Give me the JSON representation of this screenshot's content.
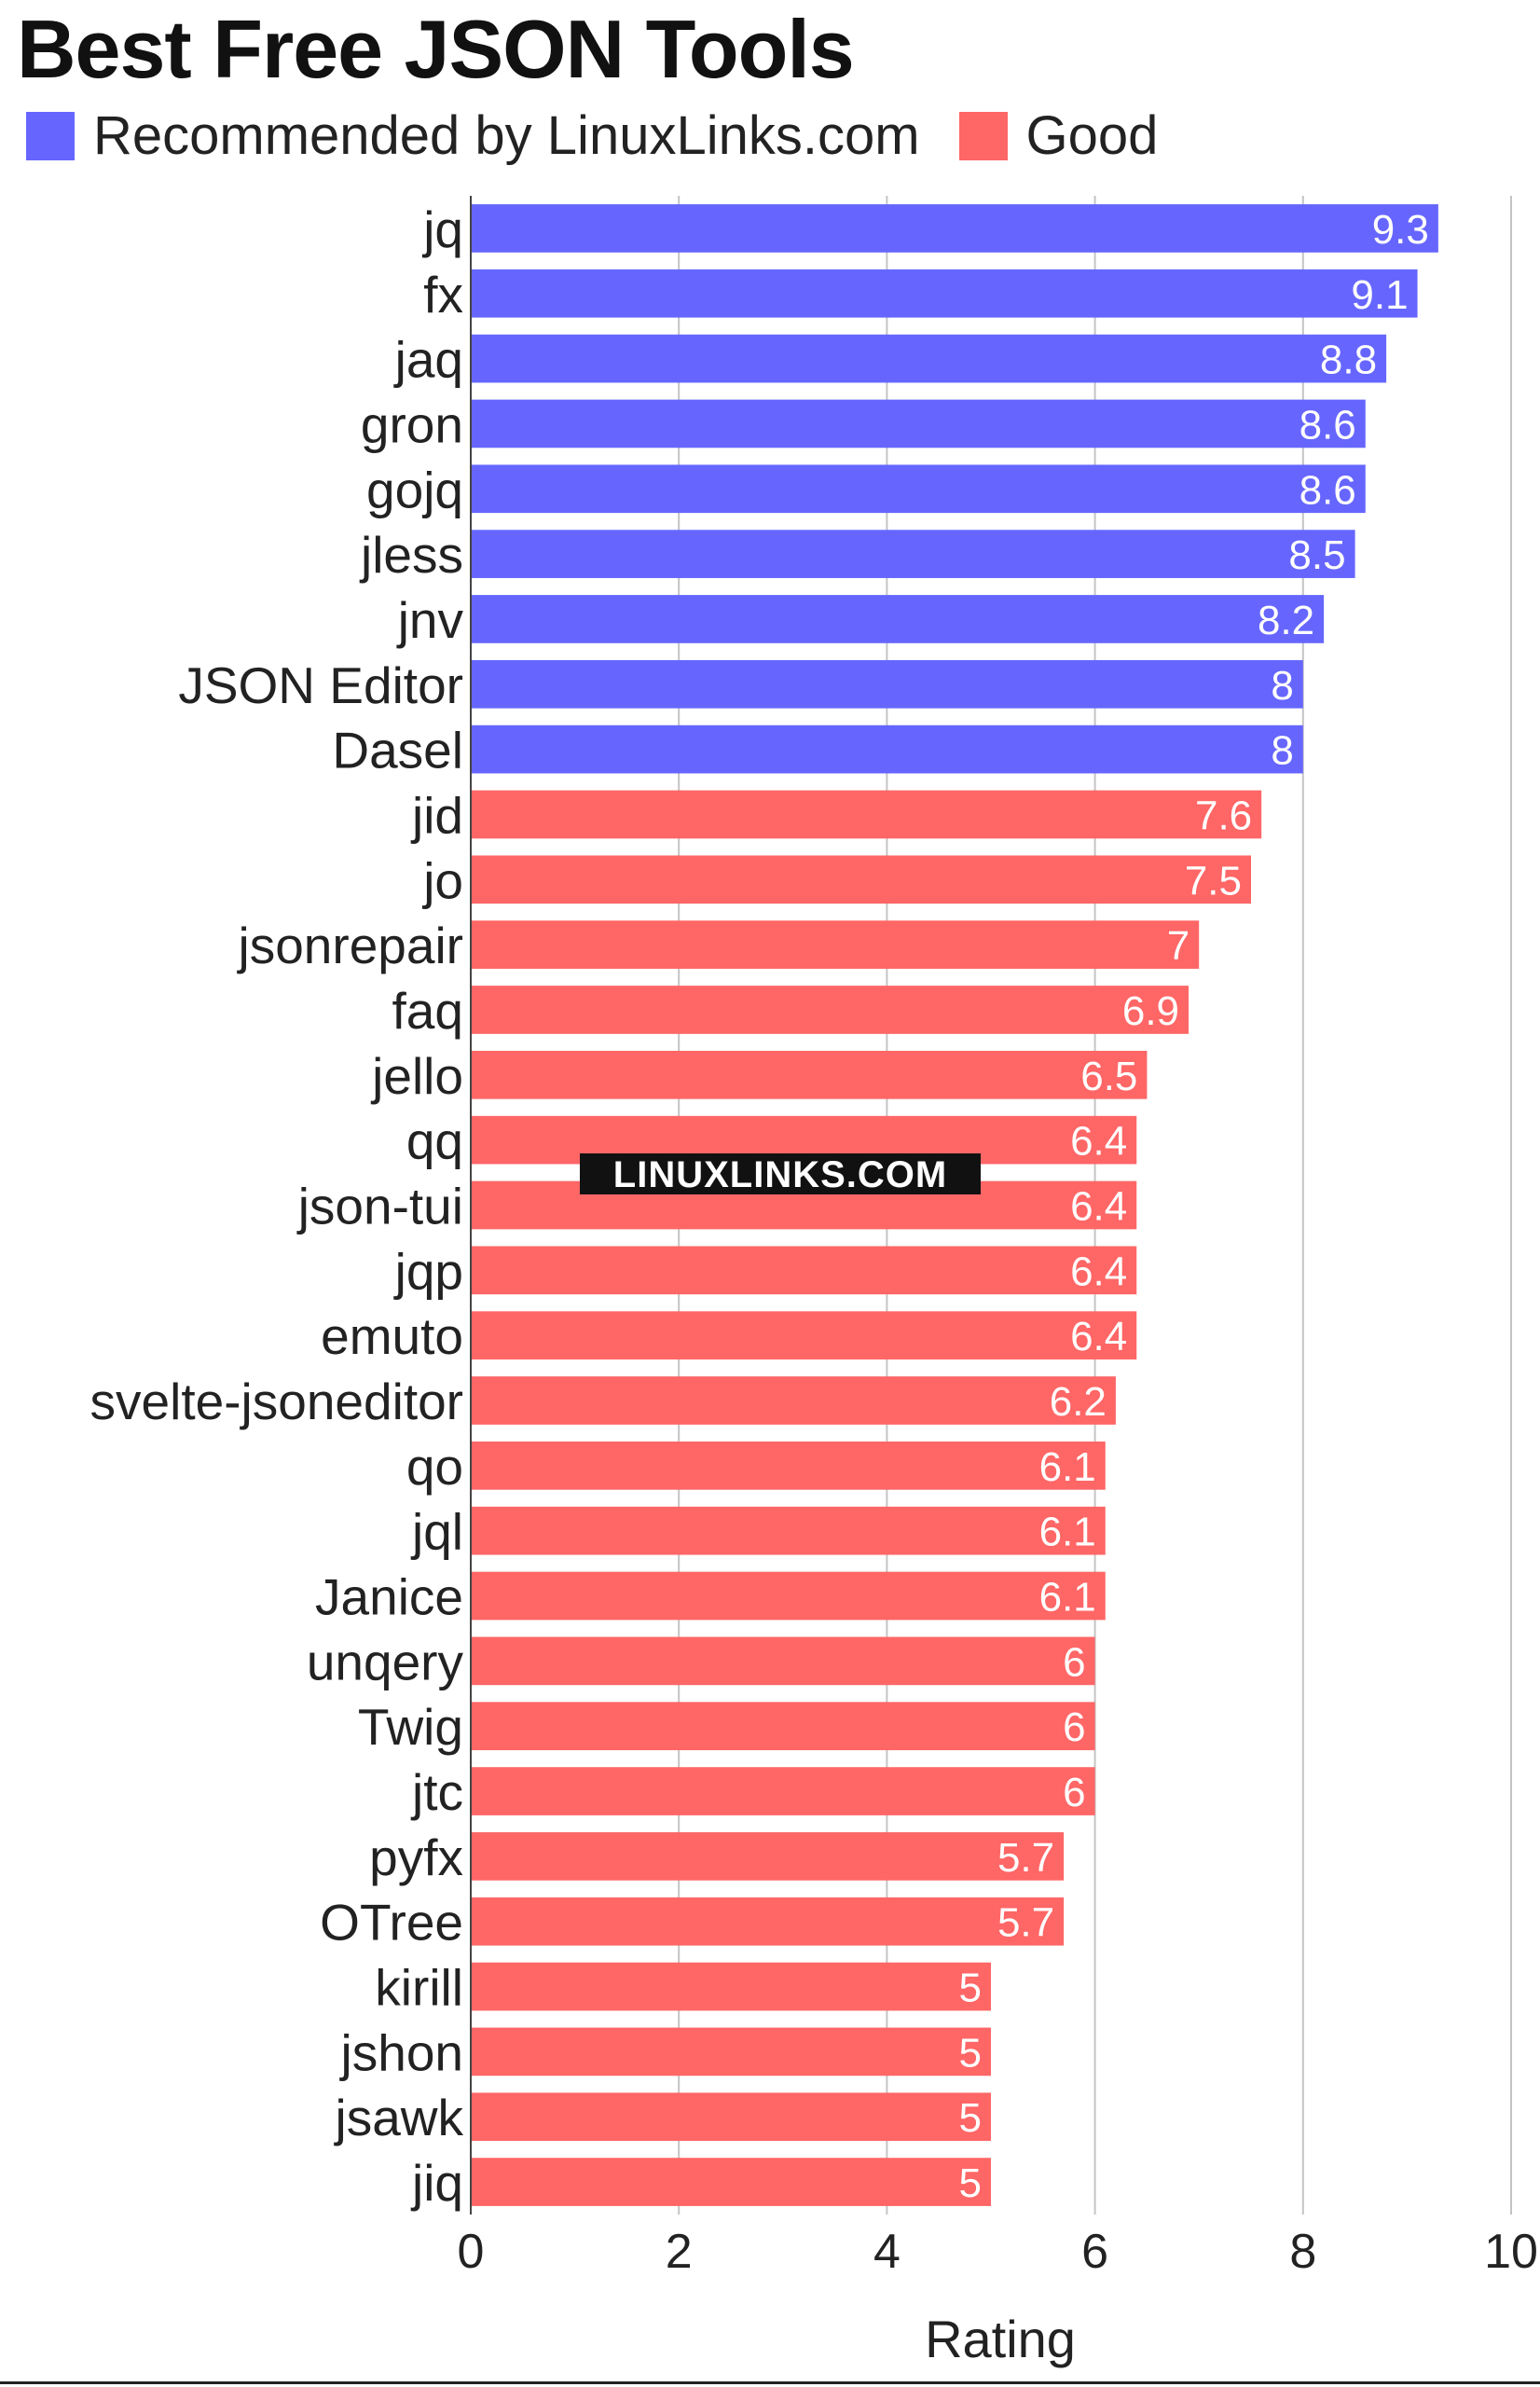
{
  "title": "Best Free JSON Tools",
  "watermark": "LINUXLINKS.COM",
  "legend": [
    {
      "label": "Recommended by LinuxLinks.com",
      "color": "#6666ff"
    },
    {
      "label": "Good",
      "color": "#ff6666"
    }
  ],
  "chart_data": {
    "type": "bar",
    "orientation": "horizontal",
    "xlabel": "Rating",
    "ylabel": "",
    "xlim": [
      0,
      10
    ],
    "ticks": [
      0,
      2,
      4,
      6,
      8,
      10
    ],
    "grid": true,
    "legend_position": "top-left",
    "categories": [
      "jq",
      "fx",
      "jaq",
      "gron",
      "gojq",
      "jless",
      "jnv",
      "JSON Editor",
      "Dasel",
      "jid",
      "jo",
      "jsonrepair",
      "faq",
      "jello",
      "qq",
      "json-tui",
      "jqp",
      "emuto",
      "svelte-jsoneditor",
      "qo",
      "jql",
      "Janice",
      "unqery",
      "Twig",
      "jtc",
      "pyfx",
      "OTree",
      "kirill",
      "jshon",
      "jsawk",
      "jiq"
    ],
    "values": [
      9.3,
      9.1,
      8.8,
      8.6,
      8.6,
      8.5,
      8.2,
      8,
      8,
      7.6,
      7.5,
      7,
      6.9,
      6.5,
      6.4,
      6.4,
      6.4,
      6.4,
      6.2,
      6.1,
      6.1,
      6.1,
      6,
      6,
      6,
      5.7,
      5.7,
      5,
      5,
      5,
      5
    ],
    "value_labels": [
      "9.3",
      "9.1",
      "8.8",
      "8.6",
      "8.6",
      "8.5",
      "8.2",
      "8",
      "8",
      "7.6",
      "7.5",
      "7",
      "6.9",
      "6.5",
      "6.4",
      "6.4",
      "6.4",
      "6.4",
      "6.2",
      "6.1",
      "6.1",
      "6.1",
      "6",
      "6",
      "6",
      "5.7",
      "5.7",
      "5",
      "5",
      "5",
      "5"
    ],
    "groups": [
      "Recommended by LinuxLinks.com",
      "Recommended by LinuxLinks.com",
      "Recommended by LinuxLinks.com",
      "Recommended by LinuxLinks.com",
      "Recommended by LinuxLinks.com",
      "Recommended by LinuxLinks.com",
      "Recommended by LinuxLinks.com",
      "Recommended by LinuxLinks.com",
      "Recommended by LinuxLinks.com",
      "Good",
      "Good",
      "Good",
      "Good",
      "Good",
      "Good",
      "Good",
      "Good",
      "Good",
      "Good",
      "Good",
      "Good",
      "Good",
      "Good",
      "Good",
      "Good",
      "Good",
      "Good",
      "Good",
      "Good",
      "Good",
      "Good"
    ],
    "colors": {
      "Recommended by LinuxLinks.com": "#6666ff",
      "Good": "#ff6666"
    }
  }
}
